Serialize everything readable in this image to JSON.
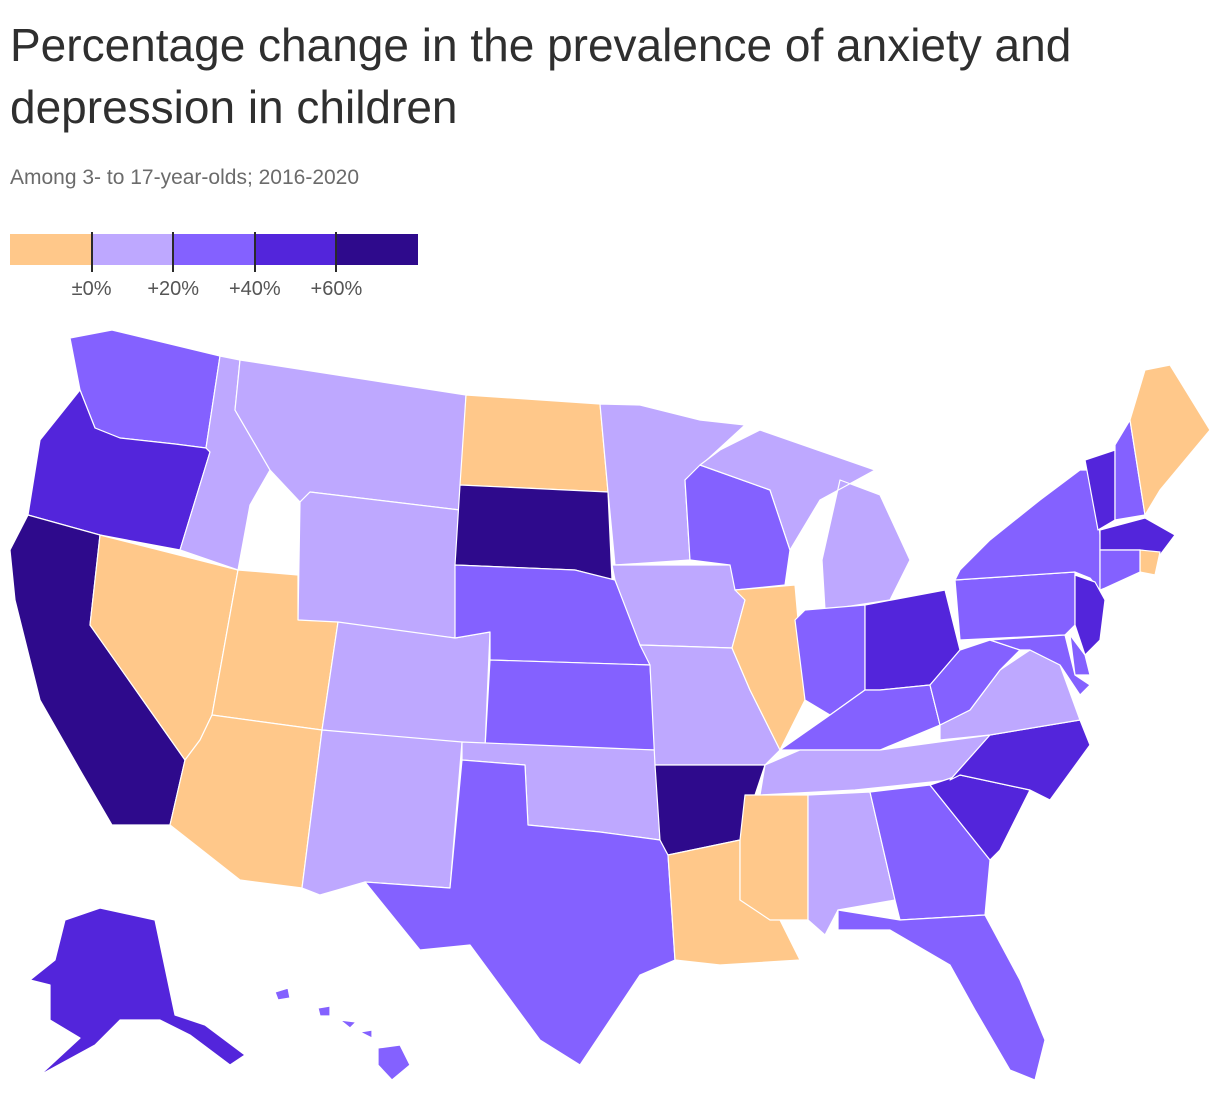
{
  "title": "Percentage change in the prevalence of anxiety and depression in children",
  "subtitle": "Among 3- to 17-year-olds; 2016-2020",
  "legend": {
    "bins": [
      {
        "color": "#FFC88A"
      },
      {
        "color": "#BEA8FF"
      },
      {
        "color": "#8461FF"
      },
      {
        "color": "#5325DB"
      },
      {
        "color": "#2E0A8C"
      }
    ],
    "ticks": [
      "±0%",
      "+20%",
      "+40%",
      "+60%"
    ]
  },
  "map": {
    "states": [
      {
        "name": "WA",
        "bin": 2
      },
      {
        "name": "OR",
        "bin": 3
      },
      {
        "name": "CA",
        "bin": 4
      },
      {
        "name": "NV",
        "bin": 0
      },
      {
        "name": "ID",
        "bin": 1
      },
      {
        "name": "MT",
        "bin": 1
      },
      {
        "name": "WY",
        "bin": 1
      },
      {
        "name": "UT",
        "bin": 0
      },
      {
        "name": "AZ",
        "bin": 0
      },
      {
        "name": "CO",
        "bin": 1
      },
      {
        "name": "NM",
        "bin": 1
      },
      {
        "name": "ND",
        "bin": 0
      },
      {
        "name": "SD",
        "bin": 4
      },
      {
        "name": "NE",
        "bin": 2
      },
      {
        "name": "KS",
        "bin": 2
      },
      {
        "name": "OK",
        "bin": 1
      },
      {
        "name": "TX",
        "bin": 2
      },
      {
        "name": "MN",
        "bin": 1
      },
      {
        "name": "IA",
        "bin": 1
      },
      {
        "name": "MO",
        "bin": 1
      },
      {
        "name": "AR",
        "bin": 4
      },
      {
        "name": "LA",
        "bin": 0
      },
      {
        "name": "WI",
        "bin": 2
      },
      {
        "name": "IL",
        "bin": 0
      },
      {
        "name": "MI",
        "bin": 1
      },
      {
        "name": "IN",
        "bin": 2
      },
      {
        "name": "OH",
        "bin": 3
      },
      {
        "name": "KY",
        "bin": 2
      },
      {
        "name": "TN",
        "bin": 1
      },
      {
        "name": "MS",
        "bin": 0
      },
      {
        "name": "AL",
        "bin": 1
      },
      {
        "name": "GA",
        "bin": 2
      },
      {
        "name": "FL",
        "bin": 2
      },
      {
        "name": "SC",
        "bin": 3
      },
      {
        "name": "NC",
        "bin": 3
      },
      {
        "name": "VA",
        "bin": 1
      },
      {
        "name": "WV",
        "bin": 2
      },
      {
        "name": "PA",
        "bin": 2
      },
      {
        "name": "NY",
        "bin": 2
      },
      {
        "name": "VT",
        "bin": 3
      },
      {
        "name": "NH",
        "bin": 2
      },
      {
        "name": "ME",
        "bin": 0
      },
      {
        "name": "MA",
        "bin": 3
      },
      {
        "name": "RI",
        "bin": 0
      },
      {
        "name": "CT",
        "bin": 2
      },
      {
        "name": "NJ",
        "bin": 3
      },
      {
        "name": "DE",
        "bin": 2
      },
      {
        "name": "MD",
        "bin": 2
      },
      {
        "name": "AK",
        "bin": 3
      },
      {
        "name": "HI",
        "bin": 2
      }
    ]
  }
}
